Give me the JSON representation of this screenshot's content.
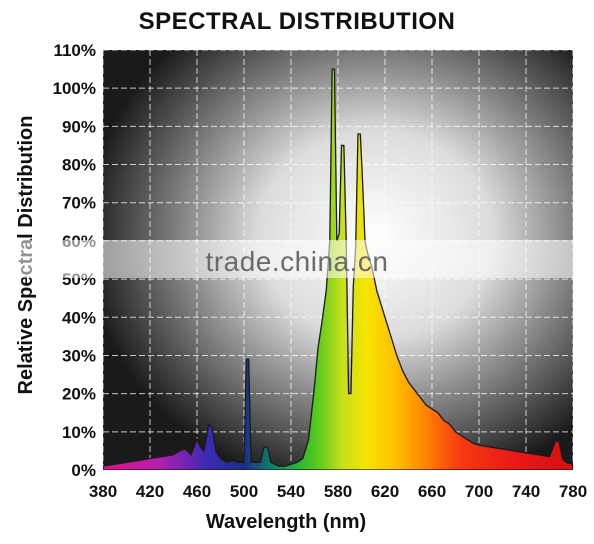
{
  "chart_data": {
    "type": "area",
    "title": "SPECTRAL DISTRIBUTION",
    "xlabel": "Wavelength (nm)",
    "ylabel": "Relative Spectral Distribution",
    "xlim": [
      380,
      780
    ],
    "ylim": [
      0,
      110
    ],
    "xticks": [
      "380",
      "420",
      "460",
      "500",
      "540",
      "580",
      "620",
      "660",
      "700",
      "740",
      "780"
    ],
    "yticks": [
      "0%",
      "10%",
      "20%",
      "30%",
      "40%",
      "50%",
      "60%",
      "70%",
      "80%",
      "90%",
      "100%",
      "110%"
    ],
    "grid": true,
    "series": [
      {
        "x": [
          380,
          390,
          400,
          410,
          420,
          430,
          440,
          445,
          450,
          455,
          460,
          463,
          466,
          470,
          473,
          476,
          480,
          485,
          490,
          495,
          500,
          502,
          504,
          506,
          508,
          510,
          514,
          517,
          520,
          523,
          526,
          530,
          535,
          540,
          545,
          550,
          555,
          560,
          563,
          566,
          570,
          573,
          575,
          577,
          579,
          581,
          583,
          585,
          587,
          589,
          591,
          593,
          595,
          597,
          599,
          601,
          603,
          605,
          607,
          609,
          611,
          613,
          615,
          617,
          620,
          625,
          630,
          635,
          640,
          645,
          650,
          655,
          660,
          665,
          670,
          675,
          680,
          685,
          690,
          695,
          700,
          710,
          720,
          730,
          740,
          750,
          760,
          765,
          768,
          771,
          774,
          780
        ],
        "y": [
          1,
          1.5,
          2,
          2.5,
          3,
          3.5,
          4,
          5,
          5.5,
          4,
          8,
          6,
          5,
          12,
          11,
          5,
          3,
          2,
          2.5,
          2,
          2,
          29,
          29,
          2,
          2,
          2,
          2,
          6,
          6,
          2,
          1.5,
          1,
          1,
          1.5,
          2,
          3,
          8,
          22,
          32,
          38,
          47,
          60,
          105,
          105,
          60,
          62,
          85,
          85,
          60,
          20,
          20,
          48,
          58,
          88,
          88,
          75,
          60,
          57,
          55,
          53,
          50,
          47,
          45,
          43,
          40,
          35,
          30,
          26,
          23,
          21,
          19,
          17,
          16,
          15,
          13,
          12,
          10,
          9,
          8,
          7,
          6.5,
          6,
          5.5,
          5,
          4.5,
          4,
          3.5,
          7.5,
          7.5,
          3,
          2,
          1.5
        ]
      }
    ]
  },
  "watermark": "trade.china.cn"
}
